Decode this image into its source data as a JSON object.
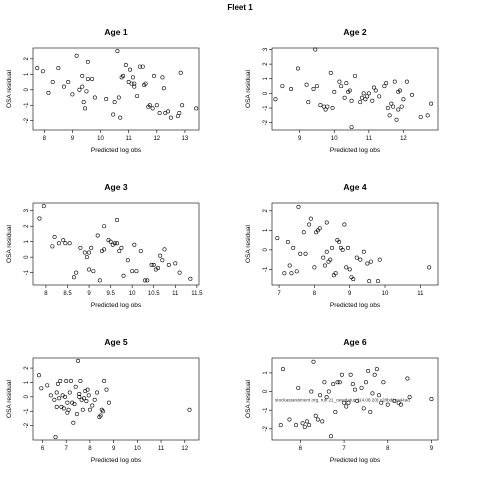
{
  "figure_title": "Fleet 1",
  "overlay_text": "stockassessment.org, run 21_newdatup (14.08.20) c28bd1ca44ad",
  "chart_data": [
    {
      "type": "scatter",
      "title": "Age 1",
      "xlabel": "Predicted log obs",
      "ylabel": "OSA residual",
      "xlim": [
        7.6,
        13.5
      ],
      "ylim": [
        -2.6,
        2.7
      ],
      "xticks": [
        8,
        9,
        10,
        11,
        12,
        13
      ],
      "yticks": [
        -2,
        -1,
        0,
        1,
        2
      ],
      "x": [
        7.75,
        7.95,
        8.15,
        8.3,
        8.5,
        8.7,
        8.85,
        9.0,
        9.15,
        9.25,
        9.35,
        9.4,
        9.55,
        9.7,
        9.35,
        9.45,
        9.5,
        9.55,
        9.8,
        10.2,
        10.45,
        10.6,
        10.65,
        10.7,
        10.75,
        10.8,
        10.9,
        11.0,
        11.05,
        11.1,
        11.15,
        11.2,
        11.3,
        11.4,
        11.5,
        11.55,
        11.6,
        11.7,
        11.75,
        11.85,
        12.0,
        12.1,
        12.2,
        12.25,
        12.3,
        12.4,
        12.5,
        12.75,
        12.8,
        12.85,
        12.9,
        13.4,
        10.5,
        11.2,
        11.9
      ],
      "y": [
        1.4,
        1.2,
        -0.2,
        0.5,
        1.4,
        0.2,
        0.5,
        -0.3,
        2.2,
        0.0,
        0.2,
        -0.8,
        1.8,
        0.7,
        0.9,
        -1.2,
        -0.1,
        0.7,
        -0.5,
        -0.6,
        -1.6,
        2.5,
        -0.5,
        -1.8,
        0.8,
        0.9,
        1.6,
        0.5,
        1.3,
        0.4,
        0.8,
        0.2,
        -0.4,
        1.5,
        1.5,
        0.3,
        0.4,
        -1.1,
        -1.0,
        -1.2,
        -1.0,
        -1.5,
        0.8,
        0.1,
        -1.5,
        -1.4,
        -1.8,
        -1.7,
        -1.5,
        1.1,
        -1.0,
        -1.2,
        -0.8,
        0.4,
        0.9
      ]
    },
    {
      "type": "scatter",
      "title": "Age 2",
      "xlabel": "Predicted log obs",
      "ylabel": "OSA residual",
      "xlim": [
        8.2,
        13.0
      ],
      "ylim": [
        -2.5,
        3.1
      ],
      "xticks": [
        9,
        10,
        11,
        12
      ],
      "yticks": [
        -2,
        -1,
        0,
        1,
        2,
        3
      ],
      "x": [
        8.3,
        8.5,
        8.75,
        8.95,
        9.2,
        9.25,
        9.4,
        9.45,
        9.5,
        9.6,
        9.7,
        9.75,
        9.8,
        9.9,
        9.95,
        10.0,
        10.15,
        10.2,
        10.3,
        10.35,
        10.4,
        10.45,
        10.5,
        10.6,
        10.75,
        10.8,
        10.85,
        10.9,
        11.0,
        11.1,
        11.2,
        11.3,
        11.45,
        11.5,
        11.55,
        11.6,
        11.65,
        11.7,
        11.75,
        11.8,
        11.85,
        11.9,
        11.95,
        12.0,
        12.1,
        12.25,
        12.5,
        12.7,
        12.8,
        10.5,
        11.15,
        11.85,
        10.95
      ],
      "y": [
        -0.4,
        0.5,
        0.3,
        1.7,
        0.6,
        -0.6,
        0.3,
        3.0,
        0.5,
        -0.8,
        -0.9,
        -1.1,
        -0.9,
        1.4,
        -1.0,
        0.1,
        0.8,
        0.5,
        -0.3,
        0.7,
        0.1,
        0.2,
        -0.5,
        1.2,
        -0.6,
        -0.3,
        0.0,
        -0.4,
        0.0,
        -0.5,
        0.2,
        -0.2,
        0.5,
        0.7,
        -1.0,
        -1.5,
        -0.7,
        -0.9,
        0.8,
        -1.8,
        -1.1,
        0.2,
        -0.9,
        -0.4,
        0.8,
        -0.1,
        -1.6,
        -1.5,
        -0.7,
        -2.3,
        0.4,
        0.1,
        -0.2
      ]
    },
    {
      "type": "scatter",
      "title": "Age 3",
      "xlabel": "Predicted log obs",
      "ylabel": "OSA residual",
      "xlim": [
        7.7,
        11.55
      ],
      "ylim": [
        -1.8,
        3.5
      ],
      "xticks": [
        8.0,
        8.5,
        9.0,
        9.5,
        10.0,
        10.5,
        11.0,
        11.5
      ],
      "yticks": [
        -1,
        0,
        1,
        2,
        3
      ],
      "x": [
        7.85,
        7.95,
        8.15,
        8.2,
        8.3,
        8.4,
        8.45,
        8.55,
        8.65,
        8.7,
        8.8,
        8.9,
        8.95,
        9.0,
        9.05,
        9.1,
        9.2,
        9.25,
        9.3,
        9.35,
        9.45,
        9.5,
        9.55,
        9.6,
        9.65,
        9.7,
        9.75,
        9.8,
        9.9,
        10.0,
        10.05,
        10.1,
        10.2,
        10.3,
        10.35,
        10.45,
        10.5,
        10.55,
        10.6,
        10.65,
        10.7,
        10.85,
        11.0,
        11.1,
        11.35,
        10.75,
        9.35,
        9.65,
        9.0
      ],
      "y": [
        2.5,
        3.3,
        0.7,
        1.3,
        0.9,
        1.1,
        0.9,
        0.9,
        -1.3,
        -1.0,
        0.6,
        0.3,
        0.0,
        -0.8,
        0.6,
        -0.9,
        1.4,
        -1.5,
        0.4,
        2.0,
        1.1,
        1.0,
        0.8,
        0.9,
        2.4,
        0.4,
        0.6,
        -1.2,
        -0.2,
        -0.9,
        0.8,
        -0.9,
        0.4,
        -1.5,
        -1.5,
        -0.5,
        -0.5,
        -0.8,
        -0.7,
        0.1,
        -0.2,
        -0.5,
        -0.4,
        -1.0,
        -1.4,
        0.5,
        0.5,
        0.9,
        0.3
      ]
    },
    {
      "type": "scatter",
      "title": "Age 4",
      "xlabel": "Predicted log obs",
      "ylabel": "OSA residual",
      "xlim": [
        6.8,
        11.5
      ],
      "ylim": [
        -1.8,
        2.4
      ],
      "xticks": [
        7,
        8,
        9,
        10,
        11
      ],
      "yticks": [
        -1,
        0,
        1,
        2
      ],
      "x": [
        6.95,
        7.15,
        7.25,
        7.3,
        7.35,
        7.4,
        7.5,
        7.55,
        7.6,
        7.7,
        7.75,
        7.85,
        7.9,
        8.0,
        8.05,
        8.1,
        8.15,
        8.25,
        8.3,
        8.35,
        8.4,
        8.45,
        8.5,
        8.55,
        8.6,
        8.65,
        8.75,
        8.8,
        8.85,
        8.9,
        9.0,
        9.05,
        9.1,
        9.2,
        9.3,
        9.4,
        9.5,
        9.55,
        9.6,
        9.8,
        11.25,
        9.85,
        8.7,
        8.35,
        8.95
      ],
      "y": [
        0.6,
        -1.2,
        0.4,
        -0.8,
        -1.2,
        0.1,
        -1.1,
        2.2,
        -0.2,
        0.9,
        -0.2,
        1.3,
        1.6,
        -0.9,
        0.9,
        1.0,
        1.1,
        -0.4,
        -0.8,
        1.4,
        -0.6,
        -0.5,
        0.1,
        -1.3,
        -1.2,
        0.5,
        0.1,
        0.0,
        1.3,
        -0.9,
        -1.0,
        -1.4,
        -1.5,
        -0.4,
        -0.5,
        -0.1,
        -0.7,
        -1.6,
        -0.6,
        -1.6,
        -0.9,
        -0.5,
        0.4,
        -0.1,
        0.1
      ]
    },
    {
      "type": "scatter",
      "title": "Age 5",
      "xlabel": "Predicted log obs",
      "ylabel": "OSA residual",
      "xlim": [
        5.6,
        12.6
      ],
      "ylim": [
        -3.0,
        2.7
      ],
      "xticks": [
        6,
        7,
        8,
        9,
        10,
        11,
        12
      ],
      "yticks": [
        -2,
        -1,
        0,
        1,
        2
      ],
      "x": [
        5.85,
        5.95,
        6.2,
        6.35,
        6.5,
        6.55,
        6.6,
        6.65,
        6.7,
        6.75,
        6.8,
        6.85,
        6.9,
        6.95,
        7.0,
        7.05,
        7.1,
        7.15,
        7.2,
        7.25,
        7.3,
        7.35,
        7.4,
        7.45,
        7.5,
        7.55,
        7.6,
        7.65,
        7.7,
        7.75,
        7.8,
        7.85,
        7.9,
        8.0,
        8.1,
        8.2,
        8.3,
        8.4,
        8.45,
        8.5,
        8.55,
        8.6,
        8.7,
        8.8,
        12.2,
        6.6,
        7.05,
        7.55,
        7.95
      ],
      "y": [
        1.5,
        0.6,
        0.8,
        0.1,
        -0.2,
        -2.8,
        0.3,
        0.9,
        -0.1,
        1.1,
        -0.7,
        0.1,
        -0.8,
        0.0,
        1.1,
        -1.1,
        -0.9,
        0.3,
        1.1,
        -0.4,
        -1.8,
        -0.5,
        0.7,
        -1.2,
        2.5,
        0.0,
        1.1,
        -0.2,
        -0.9,
        -0.1,
        0.4,
        -0.3,
        0.5,
        -0.9,
        -0.6,
        -0.2,
        0.3,
        -1.4,
        -1.3,
        -0.9,
        -1.0,
        1.1,
        0.5,
        -0.4,
        -0.9,
        -0.7,
        -0.4,
        0.2,
        0.1
      ]
    },
    {
      "type": "scatter",
      "title": "Age 6",
      "xlabel": "Predicted log obs",
      "ylabel": "OSA residual",
      "xlim": [
        5.35,
        9.15
      ],
      "ylim": [
        -2.6,
        1.8
      ],
      "xticks": [
        6,
        7,
        8,
        9
      ],
      "yticks": [
        -2,
        -1,
        0,
        1
      ],
      "x": [
        5.55,
        5.6,
        5.75,
        5.9,
        5.95,
        6.05,
        6.1,
        6.15,
        6.2,
        6.25,
        6.3,
        6.4,
        6.45,
        6.5,
        6.55,
        6.6,
        6.65,
        6.7,
        6.75,
        6.8,
        6.85,
        6.9,
        6.95,
        7.0,
        7.05,
        7.1,
        7.15,
        7.2,
        7.25,
        7.3,
        7.4,
        7.45,
        7.5,
        7.55,
        7.6,
        7.65,
        7.7,
        7.75,
        7.8,
        7.85,
        7.9,
        8.0,
        8.15,
        8.25,
        8.45,
        8.5,
        9.0,
        8.3,
        6.35
      ],
      "y": [
        -1.8,
        1.2,
        -1.5,
        -1.8,
        0.2,
        -1.7,
        -1.9,
        -1.6,
        -1.8,
        0.0,
        1.6,
        -1.5,
        -0.2,
        -1.6,
        0.5,
        -0.3,
        0.0,
        -2.4,
        0.4,
        -1.1,
        0.5,
        0.5,
        0.9,
        -0.6,
        -0.8,
        -0.6,
        0.9,
        0.4,
        0.1,
        -0.5,
        0.2,
        -0.9,
        0.5,
        1.1,
        -1.1,
        -0.1,
        0.9,
        1.2,
        -0.2,
        -0.6,
        0.5,
        -0.7,
        -0.5,
        -0.6,
        0.7,
        -0.3,
        -0.4,
        -0.7,
        -1.3
      ]
    }
  ]
}
